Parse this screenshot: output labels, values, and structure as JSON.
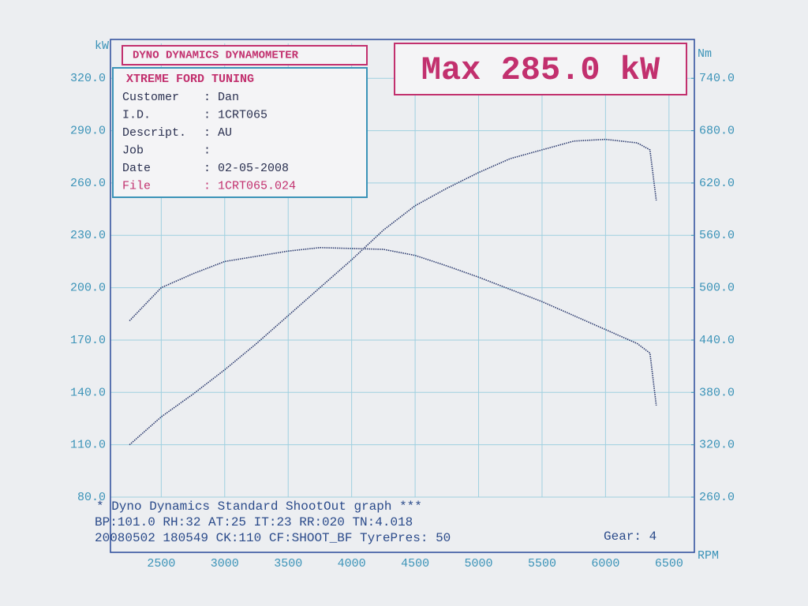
{
  "chart_data": {
    "type": "line",
    "header": "DYNO DYNAMICS DYNAMOMETER",
    "max_label": "Max 285.0 kW",
    "info": {
      "company": "XTREME FORD TUNING",
      "rows": [
        {
          "label": "Customer",
          "value": ": Dan"
        },
        {
          "label": "I.D.",
          "value": ": 1CRT065"
        },
        {
          "label": "Descript.",
          "value": ": AU"
        },
        {
          "label": "Job",
          "value": ":"
        },
        {
          "label": "Date",
          "value": ": 02-05-2008"
        },
        {
          "label": "File",
          "value": ": 1CRT065.024"
        }
      ]
    },
    "footer": [
      "* Dyno Dynamics Standard ShootOut graph ***",
      "BP:101.0 RH:32 AT:25 IT:23  RR:020 TN:4.018",
      "20080502 180549 CK:110 CF:SHOOT_BF TyrePres: 50"
    ],
    "gear": "Gear: 4",
    "y_label": "kW",
    "y2_label": "Nm",
    "x_label": "RPM",
    "x": [
      2250,
      2500,
      2750,
      3000,
      3250,
      3500,
      3750,
      4000,
      4250,
      4500,
      4750,
      5000,
      5250,
      5500,
      5750,
      6000,
      6250,
      6350,
      6400
    ],
    "series": [
      {
        "name": "Power",
        "color": "#2b3a6e",
        "values": [
          110,
          126,
          139,
          153,
          168,
          184,
          200,
          216,
          233,
          247,
          257,
          266,
          274,
          279,
          284,
          285,
          283,
          279,
          250
        ]
      },
      {
        "name": "Torque",
        "color": "#2b3a6e",
        "axis": "y2",
        "values": [
          462,
          500,
          516,
          530,
          536,
          542,
          546,
          545,
          544,
          537,
          525,
          512,
          498,
          484,
          468,
          452,
          436,
          425,
          365
        ]
      }
    ],
    "xlim": [
      2100,
      6700
    ],
    "xticks": [
      2500,
      3000,
      3500,
      4000,
      4500,
      5000,
      5500,
      6000,
      6500
    ],
    "ylim": [
      80,
      340
    ],
    "yticks": [
      {
        "value": 80,
        "label": "80.0"
      },
      {
        "value": 110,
        "label": "110.0"
      },
      {
        "value": 140,
        "label": "140.0"
      },
      {
        "value": 170,
        "label": "170.0"
      },
      {
        "value": 200,
        "label": "200.0"
      },
      {
        "value": 230,
        "label": "230.0"
      },
      {
        "value": 260,
        "label": "260.0"
      },
      {
        "value": 290,
        "label": "290.0"
      },
      {
        "value": 320,
        "label": "320.0"
      }
    ],
    "y2lim": [
      260,
      780
    ],
    "y2ticks": [
      {
        "value": 260,
        "label": "260.0"
      },
      {
        "value": 320,
        "label": "320.0"
      },
      {
        "value": 380,
        "label": "380.0"
      },
      {
        "value": 440,
        "label": "440.0"
      },
      {
        "value": 500,
        "label": "500.0"
      },
      {
        "value": 560,
        "label": "560.0"
      },
      {
        "value": 620,
        "label": "620.0"
      },
      {
        "value": 680,
        "label": "680.0"
      },
      {
        "value": 740,
        "label": "740.0"
      }
    ],
    "grid": true
  }
}
